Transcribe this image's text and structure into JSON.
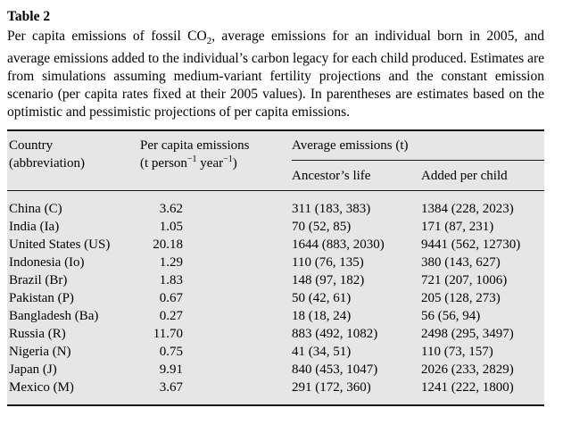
{
  "colors": {
    "page_background": "#ffffff",
    "table_background": "#e6e6e6",
    "rule_color": "#1a1a1a",
    "text_color": "#000000"
  },
  "caption": {
    "label": "Table 2",
    "text_before_sub": "Per capita emissions of fossil CO",
    "subscript": "2",
    "text_after_sub": ", average emissions for an individual born in 2005, and average emissions added to the individual’s carbon legacy for each child produced. Estimates are from simulations assuming medium-variant fertility projections and the constant emission scenario (per capita rates fixed at their 2005 values). In parentheses are estimates based on the optimistic and pessimistic projections of per capita emissions."
  },
  "table": {
    "header": {
      "country_line1": "Country",
      "country_line2": "(abbreviation)",
      "per_capita_line1": "Per capita emissions",
      "unit_open": "(t person",
      "unit_sup1": "−1",
      "unit_mid": " year",
      "unit_sup2": "−1",
      "unit_close": ")",
      "avg_group": "Average emissions (t)",
      "ancestor": "Ancestor’s life",
      "per_child": "Added per child"
    },
    "rows": [
      {
        "country": "China (C)",
        "per_capita": "3.62",
        "ancestor": "311 (183, 383)",
        "per_child": "1384 (228, 2023)"
      },
      {
        "country": "India (Ia)",
        "per_capita": "1.05",
        "ancestor": "70 (52, 85)",
        "per_child": "171 (87, 231)"
      },
      {
        "country": "United States (US)",
        "per_capita": "20.18",
        "ancestor": "1644 (883, 2030)",
        "per_child": "9441 (562, 12730)"
      },
      {
        "country": "Indonesia (Io)",
        "per_capita": "1.29",
        "ancestor": "110 (76, 135)",
        "per_child": "380 (143, 627)"
      },
      {
        "country": "Brazil (Br)",
        "per_capita": "1.83",
        "ancestor": "148 (97, 182)",
        "per_child": "721 (207, 1006)"
      },
      {
        "country": "Pakistan (P)",
        "per_capita": "0.67",
        "ancestor": "50 (42, 61)",
        "per_child": "205 (128, 273)"
      },
      {
        "country": "Bangladesh (Ba)",
        "per_capita": "0.27",
        "ancestor": "18 (18, 24)",
        "per_child": "56 (56, 94)"
      },
      {
        "country": "Russia (R)",
        "per_capita": "11.70",
        "ancestor": "883 (492, 1082)",
        "per_child": "2498 (295, 3497)"
      },
      {
        "country": "Nigeria (N)",
        "per_capita": "0.75",
        "ancestor": "41 (34, 51)",
        "per_child": "110 (73, 157)"
      },
      {
        "country": "Japan (J)",
        "per_capita": "9.91",
        "ancestor": "840 (453, 1047)",
        "per_child": "2026 (233, 2829)"
      },
      {
        "country": "Mexico (M)",
        "per_capita": "3.67",
        "ancestor": "291 (172, 360)",
        "per_child": "1241 (222, 1800)"
      }
    ]
  }
}
